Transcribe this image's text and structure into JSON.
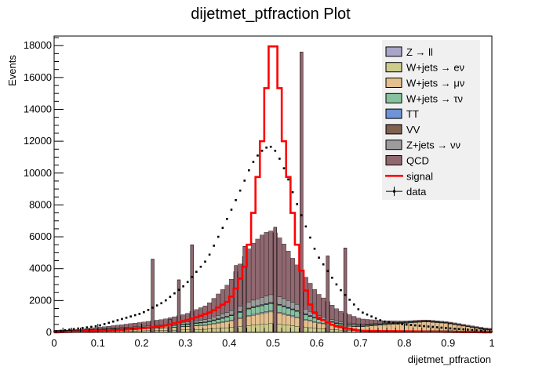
{
  "chart_data": {
    "type": "bar",
    "title": "dijetmet_ptfraction Plot",
    "xlabel": "dijetmet_ptfraction",
    "ylabel": "Events",
    "xlim": [
      0,
      1
    ],
    "ylim": [
      0,
      18600
    ],
    "x_ticks": [
      "0",
      "0.1",
      "0.2",
      "0.3",
      "0.4",
      "0.5",
      "0.6",
      "0.7",
      "0.8",
      "0.9",
      "1"
    ],
    "y_ticks": [
      "0",
      "2000",
      "4000",
      "6000",
      "8000",
      "10000",
      "12000",
      "14000",
      "16000",
      "18000"
    ],
    "bin_width": 0.01,
    "stacked": true,
    "grid": false,
    "legend_position": "top-right",
    "legend": [
      {
        "label": "Z → ll",
        "color": "#a8a6c8",
        "style": "box"
      },
      {
        "label": "W+jets → eν",
        "color": "#cccc8c",
        "style": "box"
      },
      {
        "label": "W+jets → μν",
        "color": "#e3c08e",
        "style": "box"
      },
      {
        "label": "W+jets → τν",
        "color": "#86c29f",
        "style": "box"
      },
      {
        "label": "TT",
        "color": "#6f93d8",
        "style": "box"
      },
      {
        "label": "VV",
        "color": "#80604f",
        "style": "box"
      },
      {
        "label": "Z+jets → νν",
        "color": "#9c9c9c",
        "style": "box"
      },
      {
        "label": "QCD",
        "color": "#906870",
        "style": "box"
      },
      {
        "label": "signal",
        "color": "#ff0000",
        "style": "line"
      },
      {
        "label": "data",
        "color": "#000000",
        "style": "marker"
      }
    ],
    "background_stack": [
      {
        "name": "W+jets → eν",
        "color": "#cccc8c",
        "centers": [
          0.05,
          0.15,
          0.25,
          0.35,
          0.4,
          0.45,
          0.5,
          0.55,
          0.6,
          0.65,
          0.7,
          0.8,
          0.9,
          0.99
        ],
        "values": [
          40,
          80,
          120,
          200,
          300,
          450,
          560,
          400,
          250,
          150,
          100,
          120,
          110,
          50
        ]
      },
      {
        "name": "W+jets → μν",
        "color": "#e3c08e",
        "centers": [
          0.05,
          0.15,
          0.25,
          0.35,
          0.4,
          0.45,
          0.5,
          0.55,
          0.6,
          0.65,
          0.7,
          0.75,
          0.8,
          0.85,
          0.9,
          0.95,
          0.99
        ],
        "values": [
          40,
          100,
          150,
          250,
          400,
          600,
          750,
          550,
          350,
          250,
          250,
          350,
          450,
          550,
          450,
          250,
          100
        ]
      },
      {
        "name": "Z → ll",
        "color": "#a8a6c8",
        "centers": [
          0.1,
          0.3,
          0.4,
          0.45,
          0.5,
          0.55,
          0.6,
          0.7,
          0.9
        ],
        "values": [
          5,
          20,
          40,
          60,
          70,
          60,
          40,
          20,
          5
        ]
      },
      {
        "name": "W+jets → τν",
        "color": "#86c29f",
        "centers": [
          0.05,
          0.15,
          0.25,
          0.35,
          0.4,
          0.45,
          0.5,
          0.55,
          0.6,
          0.65,
          0.7,
          0.8,
          0.9
        ],
        "values": [
          20,
          50,
          80,
          150,
          250,
          400,
          450,
          350,
          200,
          100,
          50,
          30,
          20
        ]
      },
      {
        "name": "TT",
        "color": "#6f93d8",
        "centers": [
          0.1,
          0.3,
          0.4,
          0.5,
          0.6,
          0.7,
          0.9
        ],
        "values": [
          5,
          15,
          30,
          40,
          30,
          15,
          5
        ]
      },
      {
        "name": "VV",
        "color": "#80604f",
        "centers": [
          0.1,
          0.3,
          0.4,
          0.5,
          0.6,
          0.7,
          0.9
        ],
        "values": [
          5,
          15,
          30,
          40,
          30,
          15,
          5
        ]
      },
      {
        "name": "Z+jets → νν",
        "color": "#9c9c9c",
        "centers": [
          0.05,
          0.15,
          0.25,
          0.35,
          0.4,
          0.45,
          0.5,
          0.55,
          0.6,
          0.65,
          0.7,
          0.8,
          0.9
        ],
        "values": [
          20,
          40,
          80,
          150,
          250,
          400,
          500,
          400,
          200,
          100,
          50,
          30,
          20
        ]
      },
      {
        "name": "QCD",
        "color": "#906870",
        "centers": [
          0.02,
          0.1,
          0.2,
          0.25,
          0.3,
          0.35,
          0.4,
          0.45,
          0.48,
          0.5,
          0.52,
          0.55,
          0.6,
          0.65,
          0.7,
          0.75,
          0.8
        ],
        "values": [
          0,
          100,
          250,
          350,
          500,
          900,
          1800,
          3500,
          4000,
          4000,
          3600,
          2600,
          1400,
          700,
          350,
          150,
          50
        ]
      }
    ],
    "spikes": [
      {
        "center": 0.225,
        "value": 4600
      },
      {
        "center": 0.265,
        "value": 800
      },
      {
        "center": 0.285,
        "value": 3300
      },
      {
        "center": 0.315,
        "value": 5500
      },
      {
        "center": 0.415,
        "value": 4200
      },
      {
        "center": 0.435,
        "value": 5400
      },
      {
        "center": 0.505,
        "value": 6600
      },
      {
        "center": 0.565,
        "value": 17600
      },
      {
        "center": 0.625,
        "value": 4800
      },
      {
        "center": 0.665,
        "value": 5300
      }
    ],
    "signal": {
      "name": "signal",
      "color": "#ff0000",
      "centers": [
        0.0,
        0.15,
        0.2,
        0.25,
        0.28,
        0.32,
        0.36,
        0.4,
        0.42,
        0.44,
        0.455,
        0.475,
        0.49,
        0.5,
        0.51,
        0.525,
        0.545,
        0.56,
        0.58,
        0.6,
        0.64,
        0.7,
        1.0
      ],
      "values": [
        0,
        150,
        250,
        400,
        600,
        900,
        1300,
        2000,
        3000,
        4500,
        7500,
        12000,
        17000,
        18900,
        17000,
        12000,
        7500,
        4500,
        2000,
        1000,
        400,
        100,
        0
      ]
    },
    "data_points": {
      "name": "data",
      "color": "#000000",
      "centers": [
        0.0,
        0.1,
        0.2,
        0.25,
        0.3,
        0.35,
        0.4,
        0.43,
        0.45,
        0.47,
        0.49,
        0.5,
        0.51,
        0.53,
        0.55,
        0.57,
        0.6,
        0.65,
        0.7,
        0.75,
        0.8,
        0.85,
        0.9,
        0.95,
        1.0
      ],
      "values": [
        50,
        400,
        1200,
        1900,
        3000,
        4600,
        7400,
        9200,
        10500,
        11300,
        11700,
        11600,
        11200,
        10000,
        8400,
        7000,
        4900,
        2800,
        1300,
        700,
        500,
        380,
        260,
        160,
        60
      ]
    }
  }
}
